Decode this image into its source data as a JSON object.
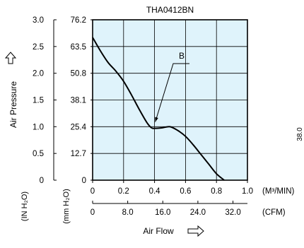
{
  "chart_data": {
    "type": "line",
    "title": "THA0412BN",
    "x_primary": {
      "label": "Air Flow",
      "unit": "(M³/MIN)",
      "range": [
        0,
        1.0
      ],
      "ticks": [
        0,
        0.2,
        0.4,
        0.6,
        0.8,
        1.0
      ],
      "tick_labels": [
        "0",
        "0.2",
        "0.4",
        "0.6",
        "0.8",
        "1.0"
      ]
    },
    "x_secondary": {
      "unit": "(CFM)",
      "range": [
        0,
        35.3
      ],
      "ticks": [
        0,
        8.0,
        16.0,
        24.0,
        32.0
      ],
      "tick_labels": [
        "0",
        "8.0",
        "16.0",
        "24.0",
        "32.0"
      ]
    },
    "y_primary": {
      "label": "Air Pressure",
      "unit": "(IN H₂O)",
      "range": [
        0,
        3.0
      ],
      "ticks": [
        0,
        0.5,
        1.0,
        1.5,
        2.0,
        2.5,
        3.0
      ],
      "tick_labels": [
        "0",
        "0.5",
        "1.0",
        "1.5",
        "2.0",
        "2.5",
        "3.0"
      ]
    },
    "y_secondary": {
      "unit": "(mm H₂O)",
      "range": [
        0,
        76.2
      ],
      "ticks": [
        0,
        12.7,
        25.4,
        38.1,
        50.8,
        63.5,
        76.2
      ],
      "tick_labels": [
        "0",
        "12.7",
        "25.4",
        "38.1",
        "50.8",
        "63.5",
        "76.2"
      ]
    },
    "grid": true,
    "series": [
      {
        "name": "B",
        "points": [
          [
            0.0,
            2.67
          ],
          [
            0.05,
            2.42
          ],
          [
            0.1,
            2.2
          ],
          [
            0.15,
            2.04
          ],
          [
            0.2,
            1.85
          ],
          [
            0.25,
            1.6
          ],
          [
            0.3,
            1.33
          ],
          [
            0.35,
            1.08
          ],
          [
            0.38,
            0.98
          ],
          [
            0.4,
            0.97
          ],
          [
            0.45,
            0.98
          ],
          [
            0.5,
            1.0
          ],
          [
            0.55,
            0.93
          ],
          [
            0.6,
            0.82
          ],
          [
            0.65,
            0.66
          ],
          [
            0.7,
            0.48
          ],
          [
            0.75,
            0.3
          ],
          [
            0.8,
            0.12
          ],
          [
            0.85,
            0.0
          ]
        ]
      }
    ],
    "annotations": [
      {
        "text": "B",
        "target": [
          0.4,
          0.97
        ]
      }
    ],
    "sidebar_text": "38.0",
    "colors": {
      "plot_background": "#dff3fb",
      "line": "#000000",
      "grid": "#000000"
    }
  }
}
